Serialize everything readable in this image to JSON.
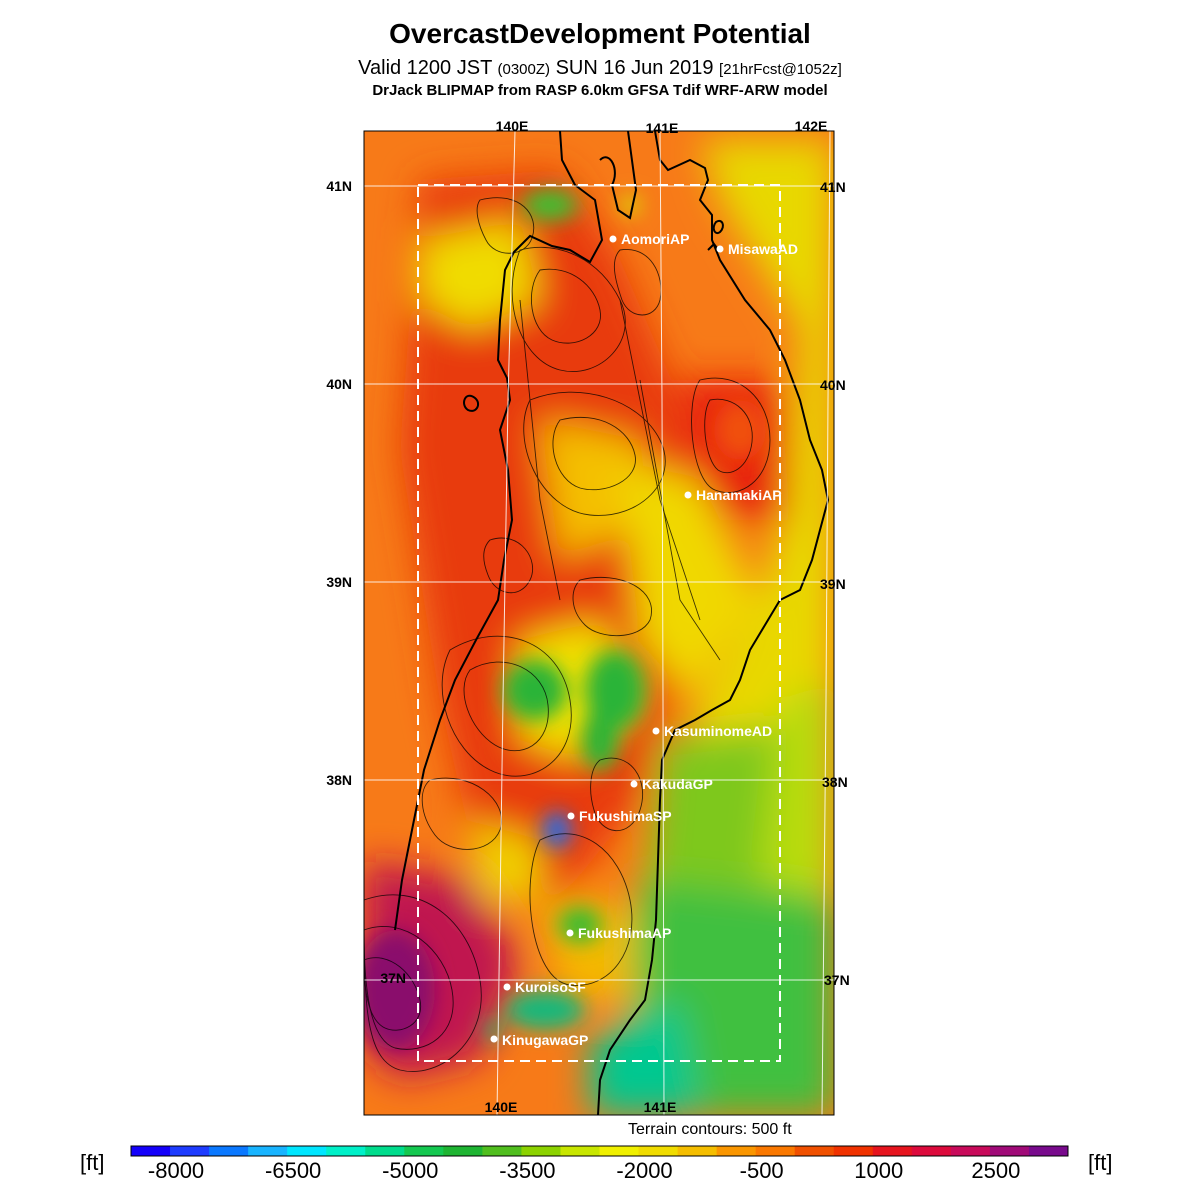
{
  "title": "OvercastDevelopment Potential",
  "valid": {
    "main_prefix": "Valid 1200 JST",
    "utc": "(0300Z)",
    "date": "SUN 16 Jun 2019",
    "forecast": "[21hrFcst@1052z]"
  },
  "model": "DrJack BLIPMAP from RASP 6.0km GFSA Tdif WRF-ARW model",
  "map": {
    "lon_labels_top": [
      "140E",
      "141E",
      "142E"
    ],
    "lon_labels_bottom": [
      "140E",
      "141E"
    ],
    "lat_labels_left": [
      "41N",
      "40N",
      "39N",
      "38N",
      "37N"
    ],
    "lat_labels_right": [
      "41N",
      "40N",
      "39N",
      "38N",
      "37N"
    ],
    "stations": [
      {
        "name": "AomoriAP"
      },
      {
        "name": "MisawaAD"
      },
      {
        "name": "HanamakiAP"
      },
      {
        "name": "KasuminomeAD"
      },
      {
        "name": "KakudaGP"
      },
      {
        "name": "FukushimaSP"
      },
      {
        "name": "FukushimaAP"
      },
      {
        "name": "KuroisoSF"
      },
      {
        "name": "KinugawaGP"
      }
    ]
  },
  "terrain_note": "Terrain contours: 500 ft",
  "colorbar": {
    "unit": "[ft]",
    "labels": [
      "-8000",
      "-6500",
      "-5000",
      "-3500",
      "-2000",
      "-500",
      "1000",
      "2500"
    ],
    "colors": [
      "#1400fa",
      "#1e3cff",
      "#0a78ff",
      "#18b4ff",
      "#00e6ff",
      "#00f0c8",
      "#00dc8c",
      "#14c850",
      "#1eb432",
      "#50be1e",
      "#8cd200",
      "#c8e600",
      "#f0f000",
      "#f0dc00",
      "#f5be00",
      "#fa9600",
      "#fa7800",
      "#f05000",
      "#f03200",
      "#e6141e",
      "#dc0a3c",
      "#c80a5a",
      "#a00a78",
      "#780a8c"
    ]
  }
}
